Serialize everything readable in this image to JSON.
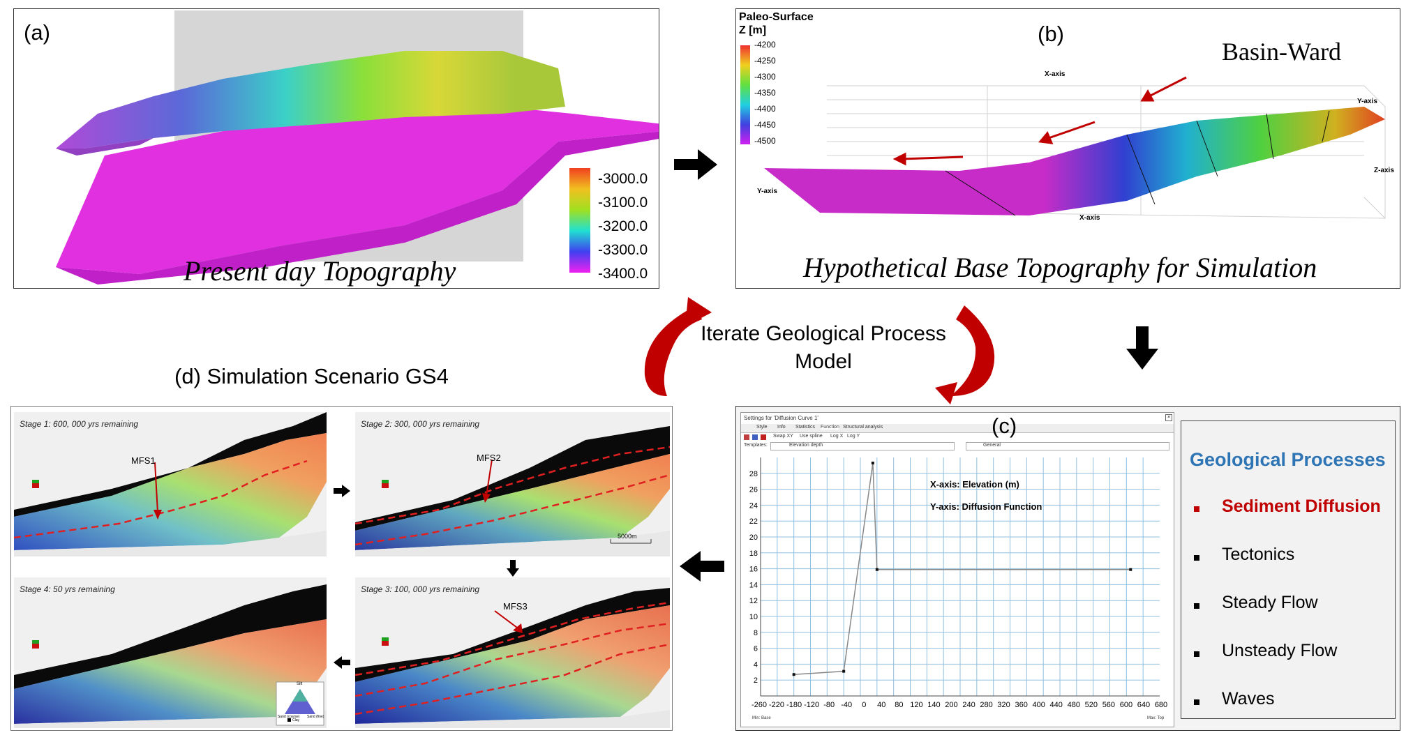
{
  "panel_a": {
    "label": "(a)",
    "caption": "Present day Topography",
    "colorbar_ticks": [
      "-3000.0",
      "-3100.0",
      "-3200.0",
      "-3300.0",
      "-3400.0"
    ]
  },
  "panel_b": {
    "label": "(b)",
    "caption": "Hypothetical Base Topography for Simulation",
    "colorbar_title_1": "Paleo-Surface",
    "colorbar_title_2": "Z [m]",
    "colorbar_ticks": [
      "-4200",
      "-4250",
      "-4300",
      "-4350",
      "-4400",
      "-4450",
      "-4500"
    ],
    "annotation": "Basin-Ward",
    "axis_labels": [
      "X-axis",
      "Y-axis",
      "Z-axis",
      "Y-axis",
      "X-axis"
    ]
  },
  "center": {
    "loop_text_1": "Iterate Geological Process",
    "loop_text_2": "Model"
  },
  "panel_c": {
    "label": "(c)",
    "window_title": "Settings for 'Diffusion Curve 1'",
    "tabs": [
      "Style",
      "Info",
      "Statistics",
      "Function",
      "Structural analysis"
    ],
    "toolbar": [
      "Swap XY",
      "Use spline",
      "Log X",
      "Log Y"
    ],
    "template_label": "Templates:",
    "x_template": "Elevation depth",
    "y_template": "General",
    "x_axis_note": "X-axis: Elevation (m)",
    "y_axis_note": "Y-axis: Diffusion Function",
    "min_label": "Min: Base",
    "max_label": "Max: Top"
  },
  "chart_data": {
    "type": "line",
    "title": "",
    "xlabel": "X-axis: Elevation (m)",
    "ylabel": "Y-axis: Diffusion Function",
    "xlim": [
      -260,
      700
    ],
    "ylim": [
      0,
      30
    ],
    "x_ticks": [
      -260,
      -220,
      -180,
      -120,
      -80,
      -40,
      0,
      40,
      80,
      120,
      140,
      200,
      240,
      280,
      320,
      360,
      400,
      440,
      480,
      520,
      560,
      600,
      640,
      680
    ],
    "y_ticks": [
      2,
      4,
      6,
      8,
      10,
      12,
      14,
      16,
      18,
      20,
      22,
      24,
      26,
      28
    ],
    "x": [
      -180,
      -60,
      10,
      20,
      630
    ],
    "y": [
      2.7,
      3.1,
      29.3,
      15.9,
      15.9
    ],
    "grid": true
  },
  "processes": {
    "title": "Geological Processes",
    "items": [
      "Sediment Diffusion",
      "Tectonics",
      "Steady Flow",
      "Unsteady Flow",
      "Waves"
    ],
    "highlight_color": "#c00000",
    "title_color": "#2e75b6"
  },
  "panel_d": {
    "title": "(d) Simulation Scenario GS4",
    "stages": [
      {
        "title": "Stage 1: 600, 000 yrs remaining",
        "marker": "MFS1"
      },
      {
        "title": "Stage 2: 300, 000 yrs remaining",
        "marker": "MFS2"
      },
      {
        "title": "Stage 4: 50 yrs remaining",
        "marker": ""
      },
      {
        "title": "Stage 3: 100, 000 yrs remaining",
        "marker": "MFS3"
      }
    ],
    "scale_bar": "5000m",
    "legend_labels": [
      "Silt",
      "Sand (coarse)",
      "Sand (fine)",
      "Clay"
    ]
  }
}
